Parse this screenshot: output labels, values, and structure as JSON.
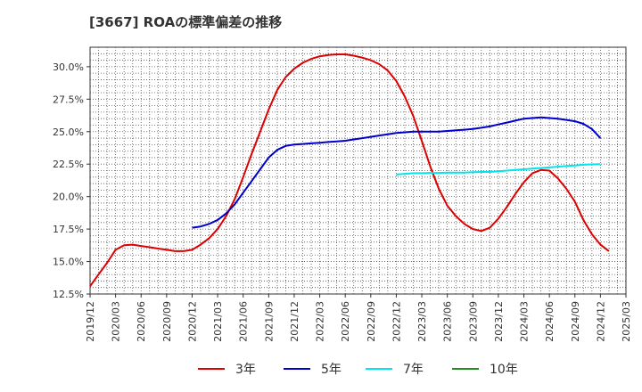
{
  "chart_data": {
    "type": "line",
    "title": "[3667]  ROAの標準偏差の推移",
    "xlabel": "",
    "ylabel": "",
    "ylim": [
      12.5,
      31.5
    ],
    "y_ticks": [
      "12.5%",
      "15.0%",
      "17.5%",
      "20.0%",
      "22.5%",
      "25.0%",
      "27.5%",
      "30.0%"
    ],
    "y_tick_values": [
      12.5,
      15.0,
      17.5,
      20.0,
      22.5,
      25.0,
      27.5,
      30.0
    ],
    "x_ticks": [
      "2019/12",
      "2020/03",
      "2020/06",
      "2020/09",
      "2020/12",
      "2021/03",
      "2021/06",
      "2021/09",
      "2021/12",
      "2022/03",
      "2022/06",
      "2022/09",
      "2022/12",
      "2023/03",
      "2023/06",
      "2023/09",
      "2023/12",
      "2024/03",
      "2024/06",
      "2024/09",
      "2024/12",
      "2025/03"
    ],
    "grid": true,
    "legend_position": "bottom",
    "series": [
      {
        "name": "3年",
        "color": "#dd0000",
        "points": [
          [
            0,
            13.1
          ],
          [
            1,
            14.0
          ],
          [
            2,
            14.9
          ],
          [
            3,
            15.9
          ],
          [
            4,
            16.25
          ],
          [
            5,
            16.3
          ],
          [
            6,
            16.2
          ],
          [
            7,
            16.1
          ],
          [
            8,
            16.0
          ],
          [
            9,
            15.9
          ],
          [
            10,
            15.8
          ],
          [
            11,
            15.8
          ],
          [
            12,
            15.9
          ],
          [
            13,
            16.3
          ],
          [
            14,
            16.8
          ],
          [
            15,
            17.5
          ],
          [
            16,
            18.5
          ],
          [
            17,
            19.8
          ],
          [
            18,
            21.5
          ],
          [
            19,
            23.3
          ],
          [
            20,
            25.0
          ],
          [
            21,
            26.7
          ],
          [
            22,
            28.2
          ],
          [
            23,
            29.2
          ],
          [
            24,
            29.85
          ],
          [
            25,
            30.3
          ],
          [
            26,
            30.6
          ],
          [
            27,
            30.8
          ],
          [
            28,
            30.9
          ],
          [
            29,
            30.95
          ],
          [
            30,
            30.95
          ],
          [
            31,
            30.85
          ],
          [
            32,
            30.7
          ],
          [
            33,
            30.5
          ],
          [
            34,
            30.2
          ],
          [
            35,
            29.7
          ],
          [
            36,
            28.9
          ],
          [
            37,
            27.7
          ],
          [
            38,
            26.2
          ],
          [
            39,
            24.3
          ],
          [
            40,
            22.3
          ],
          [
            41,
            20.6
          ],
          [
            42,
            19.3
          ],
          [
            43,
            18.5
          ],
          [
            44,
            17.9
          ],
          [
            45,
            17.5
          ],
          [
            46,
            17.35
          ],
          [
            47,
            17.6
          ],
          [
            48,
            18.3
          ],
          [
            49,
            19.2
          ],
          [
            50,
            20.2
          ],
          [
            51,
            21.1
          ],
          [
            52,
            21.8
          ],
          [
            53,
            22.05
          ],
          [
            54,
            22.0
          ],
          [
            55,
            21.4
          ],
          [
            56,
            20.6
          ],
          [
            57,
            19.6
          ],
          [
            58,
            18.2
          ],
          [
            59,
            17.1
          ],
          [
            60,
            16.3
          ],
          [
            61,
            15.8
          ]
        ]
      },
      {
        "name": "5年",
        "color": "#0000cc",
        "points": [
          [
            12,
            17.6
          ],
          [
            13,
            17.7
          ],
          [
            14,
            17.9
          ],
          [
            15,
            18.2
          ],
          [
            16,
            18.7
          ],
          [
            17,
            19.4
          ],
          [
            18,
            20.3
          ],
          [
            19,
            21.2
          ],
          [
            20,
            22.1
          ],
          [
            21,
            23.0
          ],
          [
            22,
            23.6
          ],
          [
            23,
            23.9
          ],
          [
            24,
            24.0
          ],
          [
            25,
            24.05
          ],
          [
            26,
            24.1
          ],
          [
            27,
            24.15
          ],
          [
            28,
            24.2
          ],
          [
            29,
            24.25
          ],
          [
            30,
            24.3
          ],
          [
            31,
            24.4
          ],
          [
            32,
            24.5
          ],
          [
            33,
            24.6
          ],
          [
            34,
            24.7
          ],
          [
            35,
            24.8
          ],
          [
            36,
            24.9
          ],
          [
            37,
            24.95
          ],
          [
            38,
            25.0
          ],
          [
            39,
            25.0
          ],
          [
            40,
            25.0
          ],
          [
            41,
            25.0
          ],
          [
            42,
            25.05
          ],
          [
            43,
            25.1
          ],
          [
            44,
            25.15
          ],
          [
            45,
            25.2
          ],
          [
            46,
            25.3
          ],
          [
            47,
            25.4
          ],
          [
            48,
            25.55
          ],
          [
            49,
            25.7
          ],
          [
            50,
            25.85
          ],
          [
            51,
            26.0
          ],
          [
            52,
            26.05
          ],
          [
            53,
            26.1
          ],
          [
            54,
            26.05
          ],
          [
            55,
            26.0
          ],
          [
            56,
            25.9
          ],
          [
            57,
            25.8
          ],
          [
            58,
            25.6
          ],
          [
            59,
            25.2
          ],
          [
            60,
            24.5
          ]
        ]
      },
      {
        "name": "7年",
        "color": "#00e5ee",
        "points": [
          [
            36,
            21.7
          ],
          [
            37,
            21.75
          ],
          [
            38,
            21.8
          ],
          [
            39,
            21.8
          ],
          [
            40,
            21.82
          ],
          [
            41,
            21.82
          ],
          [
            42,
            21.85
          ],
          [
            43,
            21.85
          ],
          [
            44,
            21.85
          ],
          [
            45,
            21.88
          ],
          [
            46,
            21.9
          ],
          [
            47,
            21.9
          ],
          [
            48,
            21.95
          ],
          [
            49,
            22.0
          ],
          [
            50,
            22.05
          ],
          [
            51,
            22.1
          ],
          [
            52,
            22.15
          ],
          [
            53,
            22.2
          ],
          [
            54,
            22.25
          ],
          [
            55,
            22.3
          ],
          [
            56,
            22.35
          ],
          [
            57,
            22.4
          ],
          [
            58,
            22.45
          ],
          [
            59,
            22.48
          ],
          [
            60,
            22.5
          ]
        ]
      },
      {
        "name": "10年",
        "color": "#228b22",
        "points": []
      }
    ]
  }
}
